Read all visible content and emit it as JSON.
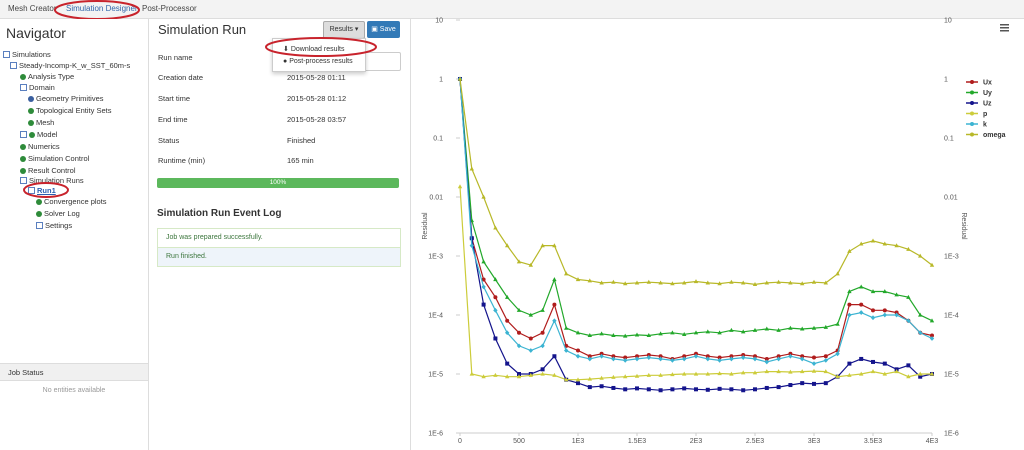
{
  "tabs": [
    "Mesh Creator",
    "Simulation Designer",
    "Post-Processor"
  ],
  "navigator": {
    "title": "Navigator",
    "tree": [
      "Simulations",
      "Steady-Incomp-K_w_SST_60m-s",
      "Analysis Type",
      "Domain",
      "Geometry Primitives",
      "Topological Entity Sets",
      "Mesh",
      "Model",
      "Numerics",
      "Simulation Control",
      "Result Control",
      "Simulation Runs",
      "Run1",
      "Convergence plots",
      "Solver Log",
      "Settings"
    ]
  },
  "job_status": {
    "title": "Job Status",
    "empty": "No entities available"
  },
  "run": {
    "title": "Simulation Run",
    "buttons": [
      "Results",
      "Save"
    ],
    "menu": [
      "Download results",
      "Post-process results"
    ],
    "fields": [
      {
        "label": "Run name"
      },
      {
        "label": "Creation date",
        "value": "2015-05-28 01:11"
      },
      {
        "label": "Start time",
        "value": "2015-05-28 01:12"
      },
      {
        "label": "End time",
        "value": "2015-05-28 03:57"
      },
      {
        "label": "Status",
        "value": "Finished"
      },
      {
        "label": "Runtime (min)",
        "value": "165 min"
      }
    ],
    "progress": 100,
    "progress_label": "100%",
    "log_title": "Simulation Run Event Log",
    "log": [
      "Job was prepared successfully.",
      "Run finished."
    ]
  },
  "chart_data": {
    "type": "line",
    "y_label": "Residual",
    "log_y": true,
    "legend": "top-right",
    "x": [
      0,
      100,
      200,
      300,
      400,
      500,
      600,
      700,
      800,
      900,
      1000,
      1100,
      1200,
      1300,
      1400,
      1500,
      1600,
      1700,
      1800,
      1900,
      2000,
      2100,
      2200,
      2300,
      2400,
      2500,
      2600,
      2700,
      2800,
      2900,
      3000,
      3100,
      3200,
      3300,
      3400,
      3500,
      3600,
      3700,
      3800,
      3900,
      4000
    ],
    "xlim": [
      0,
      4000
    ],
    "xticks": [
      0,
      500,
      {
        "value": 1000,
        "label": "1E3"
      },
      {
        "value": 1500,
        "label": "1.5E3"
      },
      {
        "value": 2000,
        "label": "2E3"
      },
      {
        "value": 2500,
        "label": "2.5E3"
      },
      {
        "value": 3000,
        "label": "3E3"
      },
      {
        "value": 3500,
        "label": "3.5E3"
      },
      {
        "value": 4000,
        "label": "4E3"
      }
    ],
    "ylim": [
      1e-06,
      10
    ],
    "yticks": [
      10,
      1,
      0.1,
      0.01,
      {
        "value": 0.001,
        "label": "1E-3"
      },
      {
        "value": 0.0001,
        "label": "1E-4"
      },
      {
        "value": 1e-05,
        "label": "1E-5"
      },
      {
        "value": 1e-06,
        "label": "1E-6"
      }
    ],
    "series": [
      {
        "name": "Ux",
        "color": "#b01c1c",
        "values": [
          1,
          0.002,
          0.0004,
          0.0002,
          8e-05,
          5e-05,
          4e-05,
          5e-05,
          0.00015,
          3e-05,
          2.5e-05,
          2e-05,
          2.2e-05,
          2e-05,
          1.9e-05,
          2e-05,
          2.1e-05,
          2e-05,
          1.8e-05,
          2e-05,
          2.2e-05,
          2e-05,
          1.9e-05,
          2e-05,
          2.1e-05,
          2e-05,
          1.8e-05,
          2e-05,
          2.2e-05,
          2e-05,
          1.9e-05,
          2e-05,
          2.5e-05,
          0.00015,
          0.00015,
          0.00012,
          0.00012,
          0.00011,
          8e-05,
          5e-05,
          4.5e-05
        ]
      },
      {
        "name": "Uy",
        "color": "#22a82a",
        "values": [
          1,
          0.004,
          0.0008,
          0.0004,
          0.0002,
          0.00012,
          0.0001,
          0.00012,
          0.0004,
          6e-05,
          5e-05,
          4.5e-05,
          4.8e-05,
          4.5e-05,
          4.4e-05,
          4.6e-05,
          4.5e-05,
          4.8e-05,
          5e-05,
          4.7e-05,
          5e-05,
          5.2e-05,
          5e-05,
          5.5e-05,
          5.2e-05,
          5.5e-05,
          5.8e-05,
          5.5e-05,
          6e-05,
          5.8e-05,
          6e-05,
          6.2e-05,
          7e-05,
          0.00025,
          0.0003,
          0.00025,
          0.00025,
          0.00022,
          0.0002,
          0.0001,
          8e-05
        ]
      },
      {
        "name": "Uz",
        "color": "#14148c",
        "values": [
          1,
          0.002,
          0.00015,
          4e-05,
          1.5e-05,
          1e-05,
          1e-05,
          1.2e-05,
          2e-05,
          8e-06,
          7e-06,
          6e-06,
          6.2e-06,
          5.8e-06,
          5.5e-06,
          5.7e-06,
          5.5e-06,
          5.3e-06,
          5.5e-06,
          5.7e-06,
          5.5e-06,
          5.4e-06,
          5.6e-06,
          5.5e-06,
          5.3e-06,
          5.5e-06,
          5.8e-06,
          6e-06,
          6.5e-06,
          7e-06,
          6.8e-06,
          7e-06,
          9e-06,
          1.5e-05,
          1.8e-05,
          1.6e-05,
          1.5e-05,
          1.2e-05,
          1.4e-05,
          9e-06,
          1e-05
        ]
      },
      {
        "name": "p",
        "color": "#cccc3a",
        "values": [
          0.015,
          1e-05,
          9e-06,
          9.5e-06,
          9e-06,
          9e-06,
          9.5e-06,
          1e-05,
          9.5e-06,
          8e-06,
          8e-06,
          8.2e-06,
          8.5e-06,
          8.8e-06,
          9e-06,
          9.2e-06,
          9.5e-06,
          9.5e-06,
          9.8e-06,
          1e-05,
          1e-05,
          1e-05,
          1.02e-05,
          1e-05,
          1.05e-05,
          1.05e-05,
          1.1e-05,
          1.1e-05,
          1.08e-05,
          1.1e-05,
          1.12e-05,
          1.1e-05,
          9e-06,
          9.5e-06,
          1e-05,
          1.1e-05,
          1e-05,
          1.1e-05,
          9e-06,
          1e-05,
          1e-05
        ]
      },
      {
        "name": "k",
        "color": "#3cb4d2",
        "values": [
          1,
          0.0015,
          0.0003,
          0.00012,
          5e-05,
          3e-05,
          2.5e-05,
          3e-05,
          8e-05,
          2.5e-05,
          2e-05,
          1.8e-05,
          2e-05,
          1.8e-05,
          1.7e-05,
          1.8e-05,
          1.9e-05,
          1.8e-05,
          1.7e-05,
          1.8e-05,
          2e-05,
          1.8e-05,
          1.7e-05,
          1.8e-05,
          1.9e-05,
          1.8e-05,
          1.6e-05,
          1.8e-05,
          2e-05,
          1.8e-05,
          1.5e-05,
          1.7e-05,
          2.2e-05,
          0.0001,
          0.00011,
          9e-05,
          0.0001,
          0.0001,
          8e-05,
          5e-05,
          4e-05
        ]
      },
      {
        "name": "omega",
        "color": "#b8b828",
        "values": [
          1,
          0.03,
          0.01,
          0.003,
          0.0015,
          0.0008,
          0.0007,
          0.0015,
          0.0015,
          0.0005,
          0.0004,
          0.00038,
          0.00035,
          0.00036,
          0.00034,
          0.00035,
          0.00036,
          0.00035,
          0.00034,
          0.00035,
          0.00037,
          0.00035,
          0.00034,
          0.00036,
          0.00035,
          0.00033,
          0.00035,
          0.00036,
          0.00035,
          0.00034,
          0.00036,
          0.00035,
          0.0005,
          0.0012,
          0.0016,
          0.0018,
          0.0016,
          0.0015,
          0.0013,
          0.001,
          0.0007
        ]
      }
    ]
  }
}
